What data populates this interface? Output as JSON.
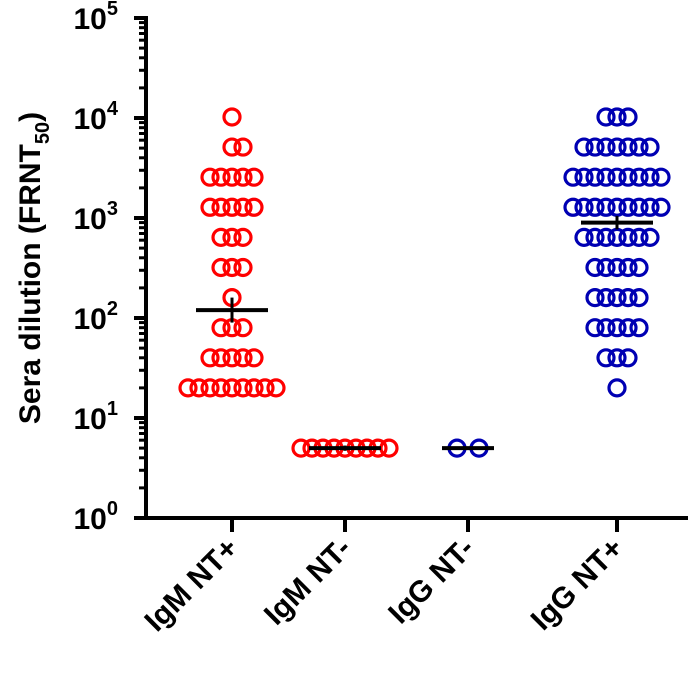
{
  "chart_data": {
    "type": "scatter",
    "ylabel": {
      "main": "Sera dilution (FRNT",
      "sub": "50",
      "close": ")"
    },
    "yscale": "log10",
    "ylim": [
      1,
      100000
    ],
    "yticks": [
      {
        "base": "10",
        "exp": "0",
        "value": 1
      },
      {
        "base": "10",
        "exp": "1",
        "value": 10
      },
      {
        "base": "10",
        "exp": "2",
        "value": 100
      },
      {
        "base": "10",
        "exp": "3",
        "value": 1000
      },
      {
        "base": "10",
        "exp": "4",
        "value": 10000
      },
      {
        "base": "10",
        "exp": "5",
        "value": 100000
      }
    ],
    "categories": [
      "IgM NT+",
      "IgM NT-",
      "IgG NT-",
      "IgG NT+"
    ],
    "colors": {
      "red": "#ff0000",
      "blue": "#0000b3",
      "bar": "#000000"
    },
    "groups": [
      {
        "category": "IgM NT+",
        "color": "red",
        "mean": 120,
        "err": [
          90,
          160
        ],
        "points": [
          [
            10240,
            0
          ],
          [
            5120,
            0
          ],
          [
            5120,
            1
          ],
          [
            2560,
            -2
          ],
          [
            2560,
            -1
          ],
          [
            2560,
            0
          ],
          [
            2560,
            1
          ],
          [
            2560,
            2
          ],
          [
            1280,
            -2
          ],
          [
            1280,
            -1
          ],
          [
            1280,
            0
          ],
          [
            1280,
            1
          ],
          [
            1280,
            2
          ],
          [
            640,
            -1
          ],
          [
            640,
            0
          ],
          [
            640,
            1
          ],
          [
            320,
            -1
          ],
          [
            320,
            0
          ],
          [
            320,
            1
          ],
          [
            160,
            0
          ],
          [
            80,
            -1
          ],
          [
            80,
            0
          ],
          [
            80,
            1
          ],
          [
            40,
            -2
          ],
          [
            40,
            -1
          ],
          [
            40,
            0
          ],
          [
            40,
            1
          ],
          [
            40,
            2
          ],
          [
            20,
            -4
          ],
          [
            20,
            -3
          ],
          [
            20,
            -2
          ],
          [
            20,
            -1
          ],
          [
            20,
            0
          ],
          [
            20,
            1
          ],
          [
            20,
            2
          ],
          [
            20,
            3
          ],
          [
            20,
            4
          ]
        ]
      },
      {
        "category": "IgM NT-",
        "color": "red",
        "mean": 5,
        "err": [
          4.7,
          5.3
        ],
        "points": [
          [
            5,
            -4
          ],
          [
            5,
            -3
          ],
          [
            5,
            -2
          ],
          [
            5,
            -1
          ],
          [
            5,
            0
          ],
          [
            5,
            1
          ],
          [
            5,
            2
          ],
          [
            5,
            3
          ],
          [
            5,
            4
          ]
        ]
      },
      {
        "category": "IgG NT-",
        "color": "blue",
        "mean": 5,
        "err": [
          5,
          5
        ],
        "points": [
          [
            5,
            -1
          ],
          [
            5,
            1
          ]
        ]
      },
      {
        "category": "IgG NT+",
        "color": "blue",
        "mean": 900,
        "err": [
          770,
          1050
        ],
        "points": [
          [
            10240,
            -1
          ],
          [
            10240,
            0
          ],
          [
            10240,
            1
          ],
          [
            5120,
            -3
          ],
          [
            5120,
            -2
          ],
          [
            5120,
            -1
          ],
          [
            5120,
            0
          ],
          [
            5120,
            1
          ],
          [
            5120,
            2
          ],
          [
            5120,
            3
          ],
          [
            2560,
            -4
          ],
          [
            2560,
            -3
          ],
          [
            2560,
            -2
          ],
          [
            2560,
            -1
          ],
          [
            2560,
            0
          ],
          [
            2560,
            1
          ],
          [
            2560,
            2
          ],
          [
            2560,
            3
          ],
          [
            2560,
            4
          ],
          [
            1280,
            -4
          ],
          [
            1280,
            -3
          ],
          [
            1280,
            -2
          ],
          [
            1280,
            -1
          ],
          [
            1280,
            0
          ],
          [
            1280,
            1
          ],
          [
            1280,
            2
          ],
          [
            1280,
            3
          ],
          [
            1280,
            4
          ],
          [
            640,
            -3
          ],
          [
            640,
            -2
          ],
          [
            640,
            -1
          ],
          [
            640,
            0
          ],
          [
            640,
            1
          ],
          [
            640,
            2
          ],
          [
            640,
            3
          ],
          [
            320,
            -2
          ],
          [
            320,
            -1
          ],
          [
            320,
            0
          ],
          [
            320,
            1
          ],
          [
            320,
            2
          ],
          [
            160,
            -2
          ],
          [
            160,
            -1
          ],
          [
            160,
            0
          ],
          [
            160,
            1
          ],
          [
            160,
            2
          ],
          [
            80,
            -2
          ],
          [
            80,
            -1
          ],
          [
            80,
            0
          ],
          [
            80,
            1
          ],
          [
            80,
            2
          ],
          [
            40,
            -1
          ],
          [
            40,
            0
          ],
          [
            40,
            1
          ],
          [
            20,
            0
          ]
        ]
      }
    ]
  }
}
